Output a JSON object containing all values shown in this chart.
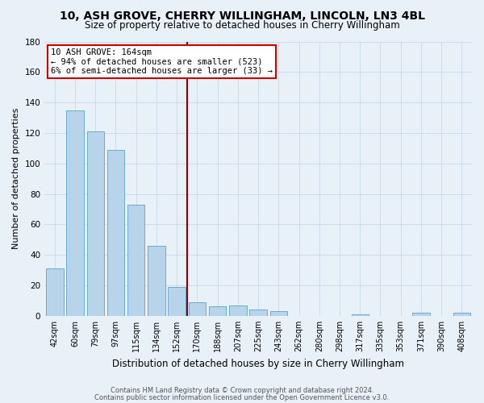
{
  "title": "10, ASH GROVE, CHERRY WILLINGHAM, LINCOLN, LN3 4BL",
  "subtitle": "Size of property relative to detached houses in Cherry Willingham",
  "xlabel": "Distribution of detached houses by size in Cherry Willingham",
  "ylabel": "Number of detached properties",
  "bar_labels": [
    "42sqm",
    "60sqm",
    "79sqm",
    "97sqm",
    "115sqm",
    "134sqm",
    "152sqm",
    "170sqm",
    "188sqm",
    "207sqm",
    "225sqm",
    "243sqm",
    "262sqm",
    "280sqm",
    "298sqm",
    "317sqm",
    "335sqm",
    "353sqm",
    "371sqm",
    "390sqm",
    "408sqm"
  ],
  "bar_values": [
    31,
    135,
    121,
    109,
    73,
    46,
    19,
    9,
    6,
    7,
    4,
    3,
    0,
    0,
    0,
    1,
    0,
    0,
    2,
    0,
    2
  ],
  "bar_color": "#b8d4ea",
  "bar_edge_color": "#6aaad4",
  "ylim": [
    0,
    180
  ],
  "yticks": [
    0,
    20,
    40,
    60,
    80,
    100,
    120,
    140,
    160,
    180
  ],
  "reference_line_color": "#8b0000",
  "annotation_title": "10 ASH GROVE: 164sqm",
  "annotation_line1": "← 94% of detached houses are smaller (523)",
  "annotation_line2": "6% of semi-detached houses are larger (33) →",
  "annotation_box_edge": "#cc0000",
  "footer_line1": "Contains HM Land Registry data © Crown copyright and database right 2024.",
  "footer_line2": "Contains public sector information licensed under the Open Government Licence v3.0.",
  "bg_color": "#e8f0f8",
  "grid_color": "#c8d8e8",
  "title_fontsize": 10,
  "subtitle_fontsize": 8.5,
  "ylabel_fontsize": 8,
  "xlabel_fontsize": 8.5,
  "tick_fontsize": 7,
  "footer_fontsize": 6,
  "annot_fontsize": 7.5
}
